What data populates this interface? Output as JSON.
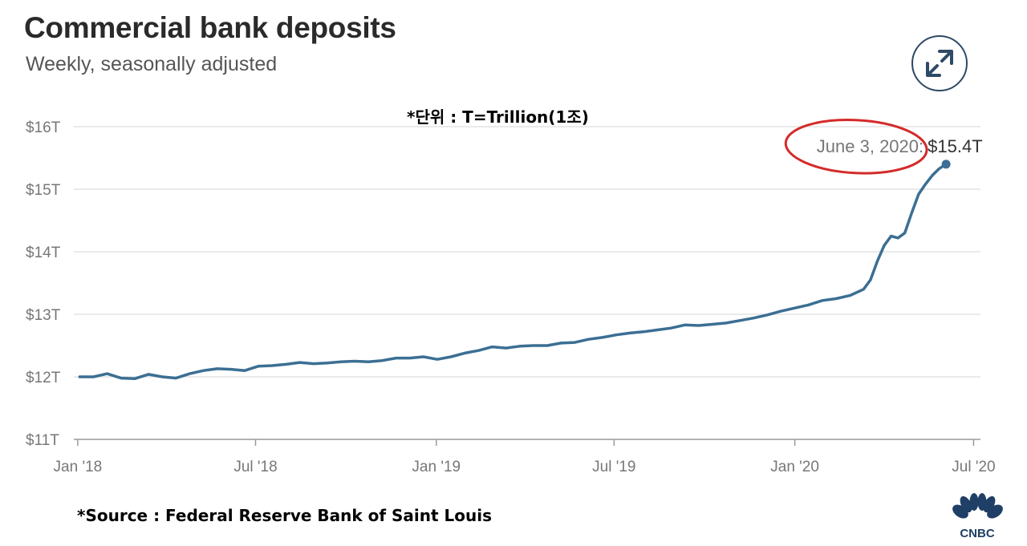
{
  "header": {
    "title": "Commercial bank deposits",
    "subtitle": "Weekly, seasonally adjusted"
  },
  "notes": {
    "unit": "*단위 : T=Trillion(1조)",
    "source": "*Source : Federal Reserve Bank of Saint Louis"
  },
  "expand_button": {
    "icon": "expand-arrows-icon"
  },
  "logo": {
    "icon": "cnbc-peacock-logo",
    "text": "CNBC"
  },
  "colors": {
    "line": "#3b6f93",
    "grid": "#e4e4e4",
    "axis": "#9a9a9a",
    "highlight_ellipse": "#d42a2a",
    "button_border": "#2f4a66"
  },
  "chart_data": {
    "type": "line",
    "title": "Commercial bank deposits",
    "subtitle": "Weekly, seasonally adjusted",
    "xlabel": "",
    "ylabel": "",
    "x_ticks": [
      {
        "date": "2018-01-01",
        "label": "Jan '18"
      },
      {
        "date": "2018-07-01",
        "label": "Jul '18"
      },
      {
        "date": "2019-01-01",
        "label": "Jan '19"
      },
      {
        "date": "2019-07-01",
        "label": "Jul '19"
      },
      {
        "date": "2020-01-01",
        "label": "Jan '20"
      },
      {
        "date": "2020-07-01",
        "label": "Jul '20"
      }
    ],
    "y_ticks": [
      {
        "value": 11,
        "label": "$11T"
      },
      {
        "value": 12,
        "label": "$12T"
      },
      {
        "value": 13,
        "label": "$13T"
      },
      {
        "value": 14,
        "label": "$14T"
      },
      {
        "value": 15,
        "label": "$15T"
      },
      {
        "value": 16,
        "label": "$16T"
      }
    ],
    "xlim": [
      "2017-12-28",
      "2020-07-08"
    ],
    "ylim": [
      11,
      16
    ],
    "grid": true,
    "series": [
      {
        "points": [
          [
            "2018-01-03",
            12.0
          ],
          [
            "2018-01-17",
            12.0
          ],
          [
            "2018-01-31",
            12.05
          ],
          [
            "2018-02-14",
            11.98
          ],
          [
            "2018-02-28",
            11.97
          ],
          [
            "2018-03-14",
            12.04
          ],
          [
            "2018-03-28",
            12.0
          ],
          [
            "2018-04-11",
            11.98
          ],
          [
            "2018-04-25",
            12.05
          ],
          [
            "2018-05-09",
            12.1
          ],
          [
            "2018-05-23",
            12.13
          ],
          [
            "2018-06-06",
            12.12
          ],
          [
            "2018-06-20",
            12.1
          ],
          [
            "2018-07-04",
            12.17
          ],
          [
            "2018-07-18",
            12.18
          ],
          [
            "2018-08-01",
            12.2
          ],
          [
            "2018-08-15",
            12.23
          ],
          [
            "2018-08-29",
            12.21
          ],
          [
            "2018-09-12",
            12.22
          ],
          [
            "2018-09-26",
            12.24
          ],
          [
            "2018-10-10",
            12.25
          ],
          [
            "2018-10-24",
            12.24
          ],
          [
            "2018-11-07",
            12.26
          ],
          [
            "2018-11-21",
            12.3
          ],
          [
            "2018-12-05",
            12.3
          ],
          [
            "2018-12-19",
            12.32
          ],
          [
            "2019-01-02",
            12.28
          ],
          [
            "2019-01-16",
            12.32
          ],
          [
            "2019-01-30",
            12.38
          ],
          [
            "2019-02-13",
            12.42
          ],
          [
            "2019-02-27",
            12.48
          ],
          [
            "2019-03-13",
            12.46
          ],
          [
            "2019-03-27",
            12.49
          ],
          [
            "2019-04-10",
            12.5
          ],
          [
            "2019-04-24",
            12.5
          ],
          [
            "2019-05-08",
            12.54
          ],
          [
            "2019-05-22",
            12.55
          ],
          [
            "2019-06-05",
            12.6
          ],
          [
            "2019-06-19",
            12.63
          ],
          [
            "2019-07-03",
            12.67
          ],
          [
            "2019-07-17",
            12.7
          ],
          [
            "2019-07-31",
            12.72
          ],
          [
            "2019-08-14",
            12.75
          ],
          [
            "2019-08-28",
            12.78
          ],
          [
            "2019-09-11",
            12.83
          ],
          [
            "2019-09-25",
            12.82
          ],
          [
            "2019-10-09",
            12.84
          ],
          [
            "2019-10-23",
            12.86
          ],
          [
            "2019-11-06",
            12.9
          ],
          [
            "2019-11-20",
            12.94
          ],
          [
            "2019-12-04",
            12.99
          ],
          [
            "2019-12-18",
            13.05
          ],
          [
            "2020-01-01",
            13.1
          ],
          [
            "2020-01-15",
            13.15
          ],
          [
            "2020-01-29",
            13.22
          ],
          [
            "2020-02-12",
            13.25
          ],
          [
            "2020-02-26",
            13.3
          ],
          [
            "2020-03-11",
            13.4
          ],
          [
            "2020-03-18",
            13.55
          ],
          [
            "2020-03-25",
            13.85
          ],
          [
            "2020-04-01",
            14.1
          ],
          [
            "2020-04-08",
            14.25
          ],
          [
            "2020-04-15",
            14.22
          ],
          [
            "2020-04-22",
            14.3
          ],
          [
            "2020-04-29",
            14.62
          ],
          [
            "2020-05-06",
            14.92
          ],
          [
            "2020-05-13",
            15.08
          ],
          [
            "2020-05-20",
            15.22
          ],
          [
            "2020-05-27",
            15.33
          ],
          [
            "2020-06-03",
            15.4
          ]
        ]
      }
    ],
    "annotations": [
      {
        "date_label": "June 3, 2020:",
        "value_label": "$15.4T",
        "x": "2020-06-03",
        "y": 15.4
      }
    ]
  }
}
